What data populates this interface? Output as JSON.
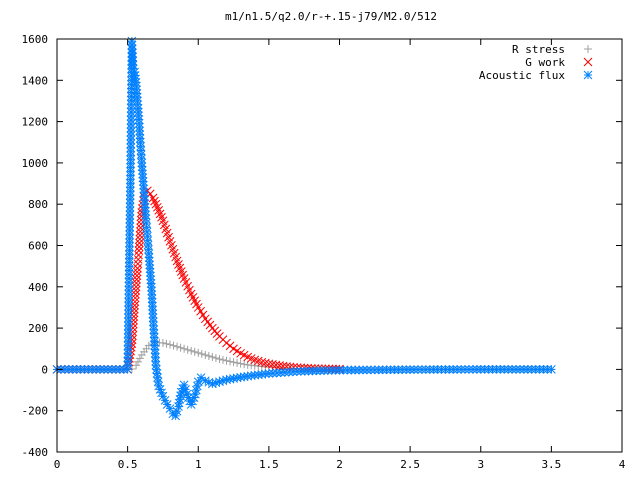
{
  "chart_data": {
    "type": "scatter",
    "title": "m1/n1.5/q2.0/r-+.15-j79/M2.0/512",
    "xlabel": "",
    "ylabel": "",
    "xlim": [
      0,
      4
    ],
    "ylim": [
      -400,
      1600
    ],
    "x_ticks": [
      "0",
      "0.5",
      "1",
      "1.5",
      "2",
      "2.5",
      "3",
      "3.5",
      "4"
    ],
    "y_ticks": [
      "-400",
      "-200",
      "0",
      "200",
      "400",
      "600",
      "800",
      "1000",
      "1200",
      "1400",
      "1600"
    ],
    "grid": false,
    "legend_position": "top-right",
    "series": [
      {
        "name": "R stress",
        "marker": "plus",
        "color": "#a0a0a0",
        "x": [
          0.0,
          0.5,
          0.53,
          0.56,
          0.6,
          0.65,
          0.7,
          0.75,
          0.8,
          0.85,
          0.9,
          0.95,
          1.0,
          1.05,
          1.1,
          1.15,
          1.2,
          1.25,
          1.3,
          1.35,
          1.4,
          1.45,
          1.5,
          1.55,
          1.6,
          1.65,
          1.7,
          1.8,
          1.9,
          2.0,
          2.5,
          3.0,
          3.5
        ],
        "y": [
          0,
          0,
          2,
          20,
          70,
          115,
          130,
          128,
          120,
          110,
          100,
          90,
          80,
          70,
          60,
          50,
          42,
          35,
          28,
          22,
          18,
          14,
          11,
          9,
          7,
          5,
          4,
          2,
          1,
          0,
          0,
          0,
          0
        ]
      },
      {
        "name": "G work",
        "marker": "cross",
        "color": "#ff0000",
        "x": [
          0.0,
          0.5,
          0.53,
          0.54,
          0.55,
          0.56,
          0.57,
          0.58,
          0.6,
          0.62,
          0.64,
          0.66,
          0.68,
          0.7,
          0.72,
          0.75,
          0.8,
          0.85,
          0.9,
          0.95,
          1.0,
          1.05,
          1.1,
          1.15,
          1.2,
          1.25,
          1.3,
          1.35,
          1.4,
          1.45,
          1.5,
          1.6,
          1.7,
          1.8,
          1.9,
          2.0
        ],
        "y": [
          0,
          0,
          125,
          220,
          310,
          400,
          490,
          575,
          760,
          855,
          865,
          850,
          830,
          800,
          770,
          720,
          620,
          525,
          440,
          365,
          300,
          245,
          200,
          160,
          128,
          100,
          78,
          60,
          46,
          35,
          27,
          16,
          9,
          5,
          3,
          2
        ]
      },
      {
        "name": "Acoustic flux",
        "marker": "star",
        "color": "#0080ff",
        "x": [
          0.0,
          0.5,
          0.52,
          0.53,
          0.54,
          0.55,
          0.56,
          0.57,
          0.58,
          0.59,
          0.6,
          0.61,
          0.62,
          0.63,
          0.64,
          0.65,
          0.66,
          0.67,
          0.68,
          0.7,
          0.72,
          0.75,
          0.78,
          0.8,
          0.82,
          0.84,
          0.86,
          0.88,
          0.9,
          0.92,
          0.95,
          0.98,
          1.0,
          1.02,
          1.05,
          1.1,
          1.15,
          1.2,
          1.3,
          1.4,
          1.5,
          1.7,
          2.0,
          2.5,
          3.0,
          3.5
        ],
        "y": [
          0,
          0,
          920,
          1590,
          1455,
          1440,
          1390,
          1300,
          1210,
          1100,
          1000,
          910,
          820,
          730,
          645,
          560,
          470,
          380,
          250,
          20,
          -80,
          -130,
          -170,
          -190,
          -215,
          -225,
          -180,
          -110,
          -75,
          -120,
          -170,
          -120,
          -60,
          -40,
          -55,
          -70,
          -60,
          -50,
          -38,
          -28,
          -20,
          -10,
          -4,
          -1,
          0,
          0
        ]
      }
    ]
  }
}
